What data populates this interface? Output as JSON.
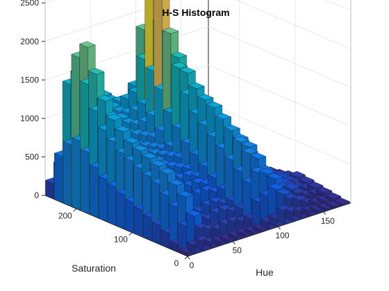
{
  "chart_data": {
    "type": "bar3",
    "title": "H-S Histogram",
    "xlabel": "Hue",
    "ylabel": "Saturation",
    "zlabel": "",
    "x_ticks": [
      "0",
      "50",
      "100",
      "150"
    ],
    "y_ticks": [
      "0",
      "100",
      "200"
    ],
    "z_ticks": [
      "0",
      "500",
      "1000",
      "1500",
      "2000",
      "2500"
    ],
    "xlim": [
      0,
      180
    ],
    "ylim": [
      0,
      256
    ],
    "zlim": [
      0,
      2700
    ],
    "grid": true,
    "colormap": "parula",
    "hue_bins": [
      0,
      9,
      18,
      27,
      36,
      45,
      54,
      63,
      72,
      81,
      90,
      99,
      108,
      117,
      126,
      135,
      144,
      153,
      162,
      171
    ],
    "saturation_bins": [
      8,
      24,
      40,
      56,
      72,
      88,
      104,
      120,
      136,
      152,
      168,
      184,
      200,
      216,
      232,
      248
    ],
    "counts": [
      [
        40,
        100,
        120,
        70,
        50,
        40,
        50,
        50,
        40,
        40,
        90,
        100,
        170,
        120,
        90,
        60,
        40,
        30,
        20,
        20
      ],
      [
        100,
        300,
        400,
        200,
        150,
        120,
        150,
        150,
        120,
        120,
        300,
        350,
        400,
        300,
        200,
        150,
        80,
        50,
        40,
        40
      ],
      [
        200,
        500,
        600,
        300,
        250,
        200,
        250,
        250,
        200,
        200,
        500,
        600,
        550,
        450,
        300,
        250,
        150,
        100,
        80,
        60
      ],
      [
        250,
        600,
        700,
        400,
        300,
        250,
        300,
        300,
        250,
        250,
        600,
        800,
        700,
        500,
        350,
        280,
        200,
        150,
        100,
        80
      ],
      [
        300,
        700,
        800,
        500,
        400,
        350,
        400,
        400,
        350,
        350,
        700,
        900,
        800,
        550,
        400,
        300,
        250,
        180,
        120,
        100
      ],
      [
        350,
        750,
        850,
        600,
        500,
        450,
        450,
        450,
        400,
        450,
        800,
        1000,
        850,
        600,
        400,
        300,
        250,
        200,
        150,
        120
      ],
      [
        400,
        800,
        900,
        700,
        650,
        550,
        500,
        500,
        450,
        550,
        900,
        1100,
        800,
        550,
        350,
        250,
        200,
        150,
        100,
        80
      ],
      [
        450,
        850,
        950,
        800,
        750,
        650,
        600,
        550,
        500,
        650,
        1000,
        1200,
        700,
        450,
        300,
        200,
        150,
        100,
        70,
        50
      ],
      [
        500,
        900,
        1000,
        850,
        800,
        750,
        700,
        650,
        600,
        750,
        1100,
        1250,
        600,
        400,
        250,
        150,
        100,
        70,
        50,
        30
      ],
      [
        550,
        1000,
        1100,
        900,
        850,
        800,
        750,
        700,
        700,
        900,
        1300,
        1350,
        500,
        300,
        200,
        100,
        70,
        50,
        30,
        20
      ],
      [
        650,
        1100,
        1200,
        1000,
        950,
        900,
        850,
        800,
        850,
        1050,
        1600,
        1500,
        400,
        200,
        100,
        60,
        40,
        30,
        20,
        10
      ],
      [
        800,
        1300,
        1400,
        1150,
        1100,
        1000,
        950,
        950,
        1000,
        1300,
        2000,
        1650,
        300,
        100,
        60,
        40,
        20,
        10,
        10,
        10
      ],
      [
        900,
        1600,
        1700,
        1300,
        1200,
        1100,
        1050,
        1050,
        1100,
        1500,
        2500,
        1900,
        200,
        60,
        30,
        20,
        10,
        10,
        5,
        5
      ],
      [
        800,
        1900,
        2000,
        1450,
        1300,
        1200,
        1150,
        1150,
        1200,
        1600,
        2600,
        2000,
        100,
        40,
        20,
        10,
        5,
        5,
        5,
        5
      ],
      [
        600,
        1500,
        1600,
        1100,
        900,
        800,
        750,
        750,
        800,
        1200,
        1900,
        1500,
        50,
        20,
        10,
        5,
        5,
        5,
        5,
        5
      ],
      [
        200,
        400,
        450,
        300,
        250,
        200,
        200,
        200,
        200,
        300,
        500,
        400,
        20,
        10,
        5,
        5,
        5,
        5,
        5,
        5
      ]
    ]
  }
}
